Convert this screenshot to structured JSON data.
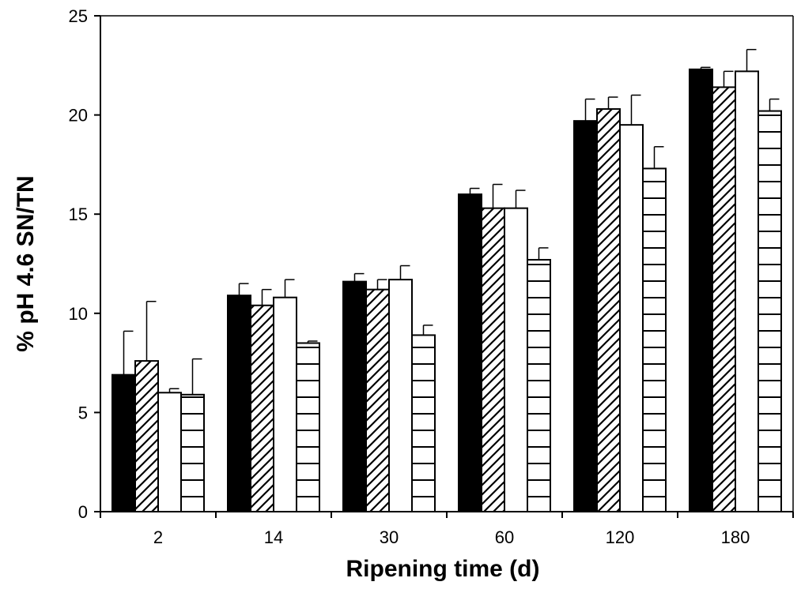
{
  "chart_data": {
    "type": "bar",
    "title": "",
    "xlabel": "Ripening time (d)",
    "ylabel": "% pH 4.6 SN/TN",
    "ylim": [
      0,
      25
    ],
    "yticks": [
      0,
      5,
      10,
      15,
      20,
      25
    ],
    "categories": [
      "2",
      "14",
      "30",
      "60",
      "120",
      "180"
    ],
    "grid": false,
    "legend": "none",
    "series": [
      {
        "fill": "solid-black",
        "values": [
          6.9,
          10.9,
          11.6,
          16.0,
          19.7,
          22.3
        ],
        "errors": [
          2.2,
          0.6,
          0.4,
          0.3,
          1.1,
          0.1
        ]
      },
      {
        "fill": "diagonal-hatch",
        "values": [
          7.6,
          10.4,
          11.2,
          15.3,
          20.3,
          21.4
        ],
        "errors": [
          3.0,
          0.8,
          0.5,
          1.2,
          0.6,
          0.8
        ]
      },
      {
        "fill": "white",
        "values": [
          6.0,
          10.8,
          11.7,
          15.3,
          19.5,
          22.2
        ],
        "errors": [
          0.2,
          0.9,
          0.7,
          0.9,
          1.5,
          1.1
        ]
      },
      {
        "fill": "horizontal-lines",
        "values": [
          5.9,
          8.5,
          8.9,
          12.7,
          17.3,
          20.2
        ],
        "errors": [
          1.8,
          0.1,
          0.5,
          0.6,
          1.1,
          0.6
        ]
      }
    ]
  }
}
